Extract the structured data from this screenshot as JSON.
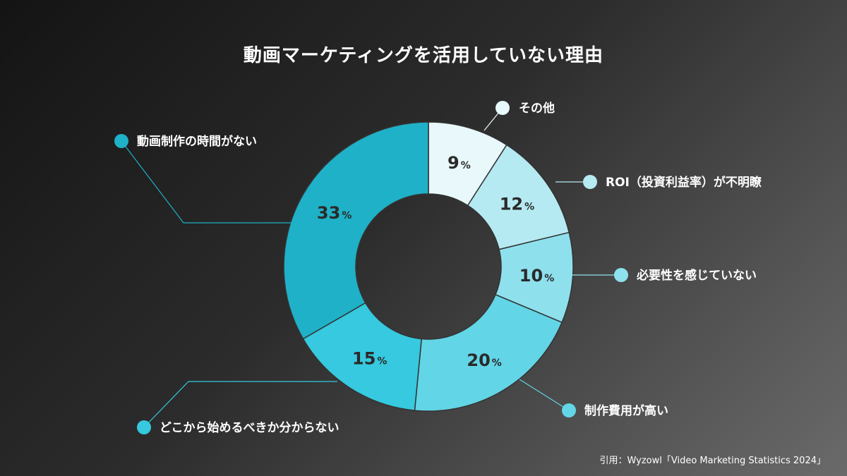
{
  "chart_data": {
    "type": "pie",
    "title": "動画マーケティングを活用していない理由",
    "unit": "%",
    "slices": [
      {
        "label": "その他",
        "value": 9,
        "color": "#e8f8fb"
      },
      {
        "label": "ROI（投資利益率）が不明瞭",
        "value": 12,
        "color": "#b5eaf2"
      },
      {
        "label": "必要性を感じていない",
        "value": 10,
        "color": "#8ee0ed"
      },
      {
        "label": "制作費用が高い",
        "value": 20,
        "color": "#62d5e6"
      },
      {
        "label": "どこから始めるべきか分からない",
        "value": 15,
        "color": "#36c9df"
      },
      {
        "label": "動画制作の時間がない",
        "value": 33,
        "color": "#1fb1c7"
      }
    ]
  },
  "source": "引用：Wyzowl「Video Marketing Statistics 2024」"
}
